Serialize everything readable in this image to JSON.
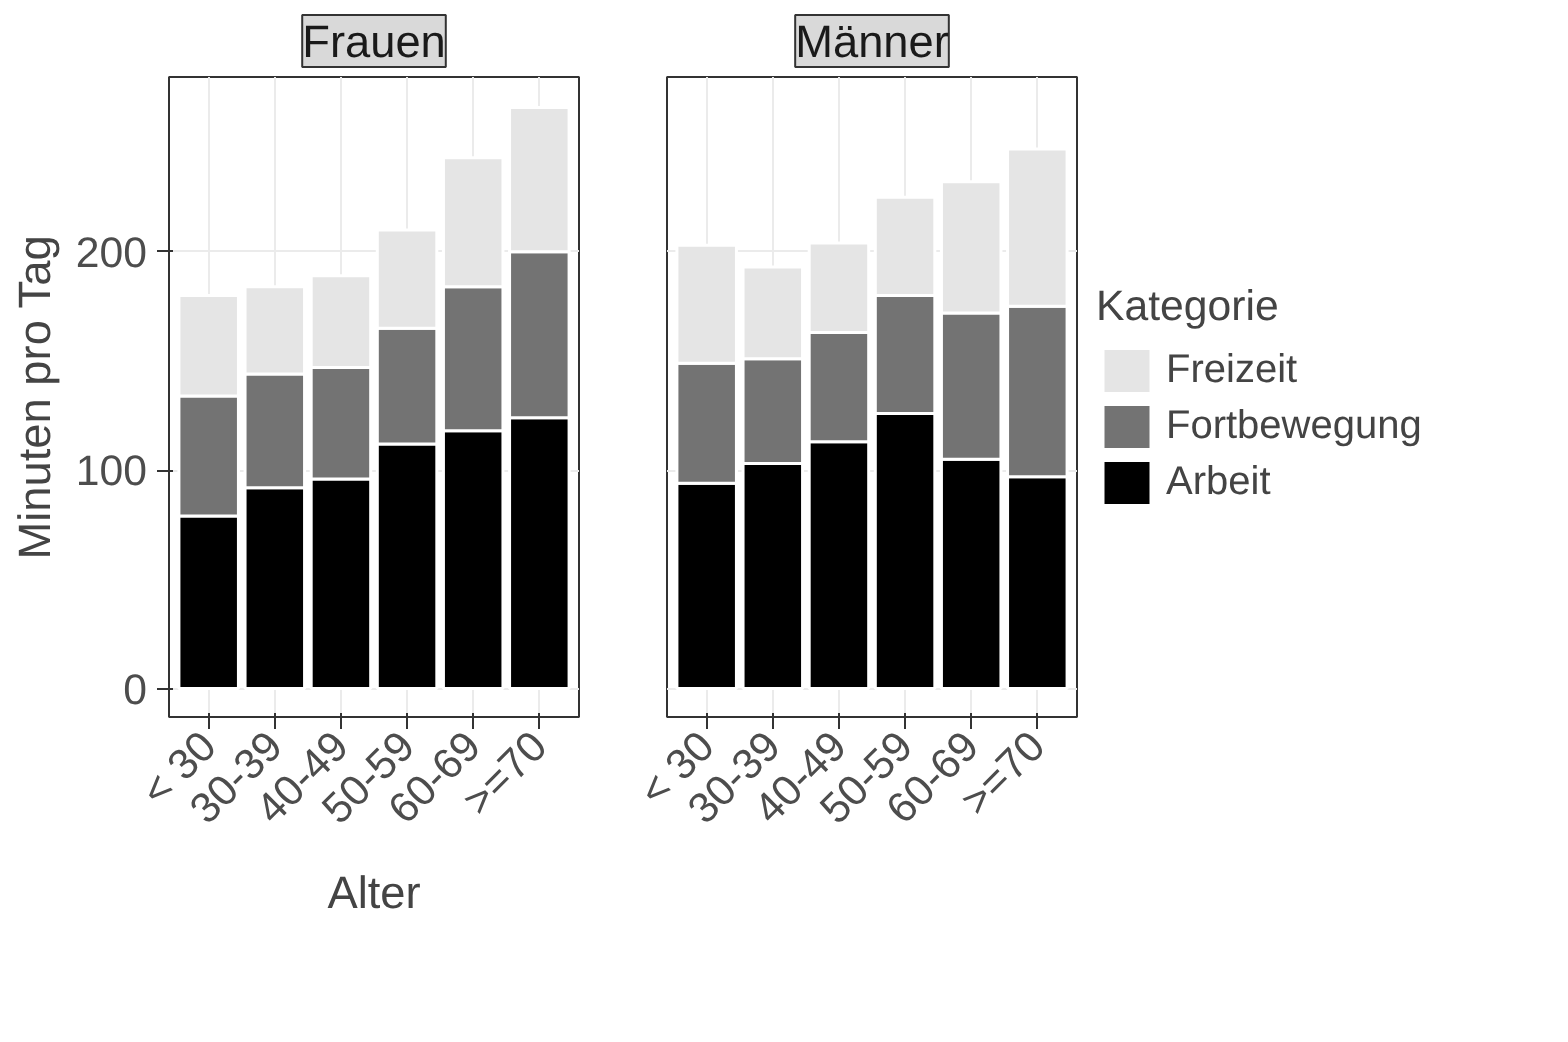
{
  "chart_data": [
    {
      "type": "bar",
      "title": "Frauen",
      "ylabel": "Minuten pro Tag",
      "xlabel": "Alter",
      "stacked": true,
      "categories": [
        "< 30",
        "30-39",
        "40-49",
        "50-59",
        "60-69",
        ">=70"
      ],
      "ylim": [
        -13,
        280
      ],
      "yticks": [
        0,
        100,
        200
      ],
      "grid": true,
      "series": [
        {
          "color": "#000000",
          "values": [
            79,
            92,
            96,
            112,
            118,
            124
          ]
        },
        {
          "color": "#737373",
          "values": [
            55,
            52,
            51,
            53,
            66,
            76
          ]
        },
        {
          "color": "#e5e5e5",
          "values": [
            46,
            40,
            42,
            45,
            59,
            66
          ]
        }
      ]
    },
    {
      "type": "bar",
      "title": "Männer",
      "legend_title": "Kategorie",
      "stacked": true,
      "categories": [
        "< 30",
        "30-39",
        "40-49",
        "50-59",
        "60-69",
        ">=70"
      ],
      "ylim": [
        -13,
        280
      ],
      "yticks": [
        0,
        100,
        200
      ],
      "grid": true,
      "legend": "right",
      "tick_labels": "x",
      "series": [
        {
          "name": "Arbeit",
          "color": "#000000",
          "values": [
            94,
            103,
            113,
            126,
            105,
            97
          ]
        },
        {
          "name": "Fortbewegung",
          "color": "#737373",
          "values": [
            55,
            48,
            50,
            54,
            67,
            78
          ]
        },
        {
          "name": "Freizeit",
          "color": "#e5e5e5",
          "values": [
            54,
            42,
            41,
            45,
            60,
            72
          ]
        }
      ]
    }
  ]
}
